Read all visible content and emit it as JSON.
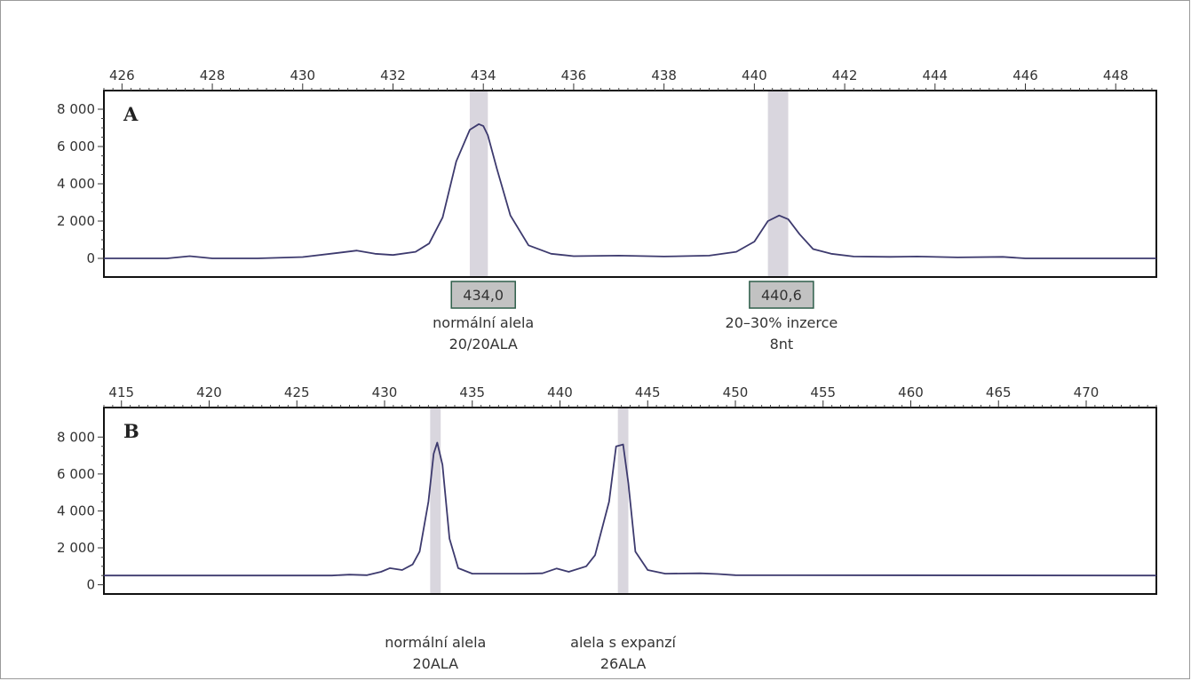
{
  "chart_data": [
    {
      "type": "line",
      "panel_label": "A",
      "xlim": [
        425.6,
        448.9
      ],
      "ylim": [
        -1000,
        9000
      ],
      "x_ticks": [
        426,
        428,
        430,
        432,
        434,
        436,
        438,
        440,
        442,
        444,
        446,
        448
      ],
      "x_tick_labels": [
        "426",
        "428",
        "430",
        "432",
        "434",
        "436",
        "438",
        "440",
        "442",
        "444",
        "446",
        "448"
      ],
      "y_ticks": [
        0,
        2000,
        4000,
        6000,
        8000
      ],
      "y_tick_labels": [
        "0",
        "2 000",
        "4 000",
        "6 000",
        "8 000"
      ],
      "x_axis_position": "top",
      "line_color": "#3d3a6e",
      "highlight_color": "#d9d6de",
      "highlights": [
        [
          433.7,
          434.1
        ],
        [
          440.3,
          440.75
        ]
      ],
      "series": [
        {
          "x": [
            425.6,
            427.0,
            427.5,
            428.0,
            429.0,
            430.0,
            430.8,
            431.2,
            431.6,
            432.0,
            432.5,
            432.8,
            433.1,
            433.4,
            433.7,
            433.9,
            434.0,
            434.1,
            434.3,
            434.6,
            435.0,
            435.5,
            436.0,
            437.0,
            438.0,
            439.0,
            439.6,
            440.0,
            440.3,
            440.55,
            440.75,
            441.0,
            441.3,
            441.7,
            442.2,
            443.0,
            443.6,
            444.5,
            445.5,
            446.0,
            447.0,
            448.9
          ],
          "y": [
            0,
            0,
            120,
            0,
            0,
            70,
            300,
            420,
            250,
            180,
            350,
            800,
            2200,
            5200,
            6900,
            7200,
            7100,
            6600,
            4800,
            2300,
            700,
            250,
            120,
            150,
            100,
            150,
            350,
            900,
            2000,
            2300,
            2100,
            1300,
            500,
            250,
            100,
            80,
            100,
            50,
            80,
            0,
            0,
            0
          ]
        }
      ],
      "annotations": [
        {
          "box": "434,0",
          "lines": [
            "normální alela",
            "20/20ALA"
          ],
          "x": 434.0
        },
        {
          "box": "440,6",
          "lines": [
            "20–30% inzerce",
            "8nt"
          ],
          "x": 440.6
        }
      ]
    },
    {
      "type": "line",
      "panel_label": "B",
      "xlim": [
        414,
        474
      ],
      "ylim": [
        -500,
        9600
      ],
      "x_ticks": [
        415,
        420,
        425,
        430,
        435,
        440,
        445,
        450,
        455,
        460,
        465,
        470
      ],
      "x_tick_labels": [
        "415",
        "420",
        "425",
        "430",
        "435",
        "440",
        "445",
        "450",
        "455",
        "460",
        "465",
        "470"
      ],
      "y_ticks": [
        0,
        2000,
        4000,
        6000,
        8000
      ],
      "y_tick_labels": [
        "0",
        "2 000",
        "4 000",
        "6 000",
        "8 000"
      ],
      "x_axis_position": "top",
      "line_color": "#3d3a6e",
      "highlight_color": "#d9d6de",
      "highlights": [
        [
          432.6,
          433.2
        ],
        [
          443.3,
          443.9
        ]
      ],
      "series": [
        {
          "x": [
            414,
            427.0,
            428.0,
            429.0,
            429.8,
            430.3,
            431.0,
            431.6,
            432.0,
            432.5,
            432.8,
            433.0,
            433.3,
            433.7,
            434.2,
            435.0,
            438.0,
            439.0,
            439.8,
            440.5,
            441.5,
            442.0,
            442.8,
            443.2,
            443.6,
            443.9,
            444.3,
            445.0,
            446.0,
            448.0,
            449.0,
            450.0,
            474.0
          ],
          "y": [
            500,
            500,
            550,
            520,
            700,
            900,
            800,
            1100,
            1800,
            4500,
            7100,
            7700,
            6500,
            2500,
            900,
            600,
            600,
            620,
            880,
            700,
            1000,
            1600,
            4500,
            7500,
            7600,
            5500,
            1800,
            800,
            600,
            620,
            580,
            520,
            500
          ]
        }
      ],
      "annotations": [
        {
          "lines": [
            "normální alela",
            "20ALA"
          ],
          "x": 432.9
        },
        {
          "lines": [
            "alela s expanzí",
            "26ALA"
          ],
          "x": 443.6
        }
      ]
    }
  ]
}
